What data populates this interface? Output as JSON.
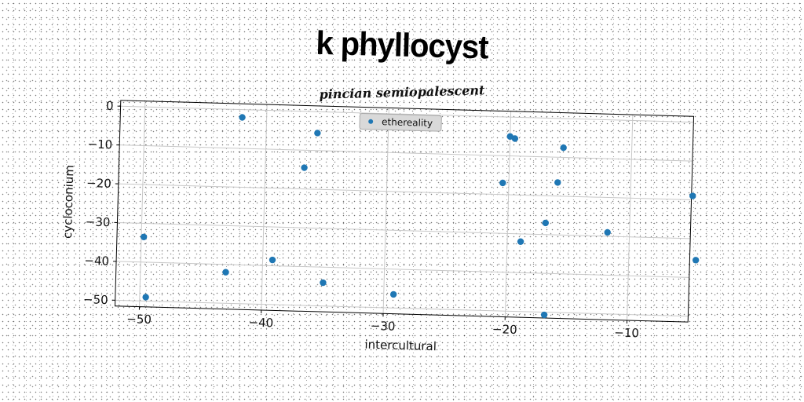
{
  "chart_data": {
    "type": "scatter",
    "title": "k phyllocyst",
    "subtitle": "pincian semiopalescent",
    "xlabel": "intercultural",
    "ylabel": "cycloconium",
    "xlim": [
      -52,
      -5
    ],
    "ylim": [
      -51.5,
      1.5
    ],
    "xticks": [
      -50,
      -40,
      -30,
      -20,
      -10
    ],
    "yticks": [
      0,
      -10,
      -20,
      -30,
      -40,
      -50
    ],
    "grid": true,
    "legend_position": "top-center",
    "series": [
      {
        "name": "ethereality",
        "color": "#1f77b4",
        "x": [
          -49.8,
          -49.5,
          -42.0,
          -43.0,
          -39.2,
          -36.8,
          -35.8,
          -35.0,
          -29.2,
          -20.5,
          -20.0,
          -19.6,
          -18.9,
          -16.9,
          -16.8,
          -16.0,
          -15.6,
          -11.8,
          -4.9,
          -4.5
        ],
        "y": [
          -33.5,
          -49.0,
          -2.0,
          -42.0,
          -38.5,
          -14.5,
          -5.5,
          -44.0,
          -46.5,
          -17.0,
          -5.0,
          -5.5,
          -32.0,
          -27.0,
          -53.0,
          -16.5,
          -7.5,
          -29.0,
          -19.0,
          -35.5
        ]
      }
    ]
  }
}
